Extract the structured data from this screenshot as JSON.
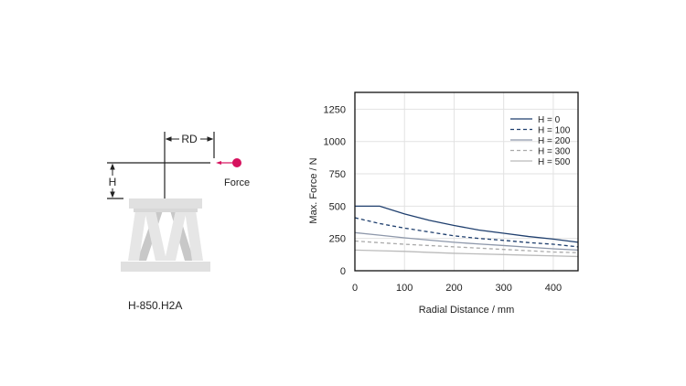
{
  "figure": {
    "rd_label": "RD",
    "h_label": "H",
    "force_label": "Force",
    "caption": "H-850.H2A",
    "force_color": "#d6125e"
  },
  "chart_data": {
    "type": "line",
    "xlabel": "Radial Distance / mm",
    "ylabel": "Max. Force / N",
    "xlim": [
      0,
      450
    ],
    "ylim": [
      0,
      1380
    ],
    "xticks": [
      0,
      100,
      200,
      300,
      400
    ],
    "yticks": [
      0,
      250,
      500,
      750,
      1000,
      1250
    ],
    "grid": true,
    "legend_position": "top-right",
    "x": [
      0,
      50,
      100,
      150,
      200,
      250,
      300,
      350,
      400,
      450
    ],
    "series": [
      {
        "name": "H = 0",
        "values": [
          500,
          500,
          440,
          390,
          350,
          315,
          290,
          265,
          245,
          220
        ],
        "color": "#1f3f6e",
        "dash": "solid"
      },
      {
        "name": "H = 100",
        "values": [
          410,
          365,
          330,
          300,
          270,
          250,
          235,
          218,
          205,
          185
        ],
        "color": "#1f3f6e",
        "dash": "dashed"
      },
      {
        "name": "H = 200",
        "values": [
          295,
          275,
          255,
          237,
          220,
          207,
          195,
          182,
          170,
          160
        ],
        "color": "#8d97aa",
        "dash": "solid"
      },
      {
        "name": "H = 300",
        "values": [
          230,
          217,
          205,
          195,
          185,
          175,
          165,
          155,
          145,
          140
        ],
        "color": "#aaaaaa",
        "dash": "dashed"
      },
      {
        "name": "H = 500",
        "values": [
          160,
          155,
          150,
          142,
          135,
          130,
          125,
          120,
          115,
          110
        ],
        "color": "#bbbbbb",
        "dash": "solid"
      }
    ]
  }
}
